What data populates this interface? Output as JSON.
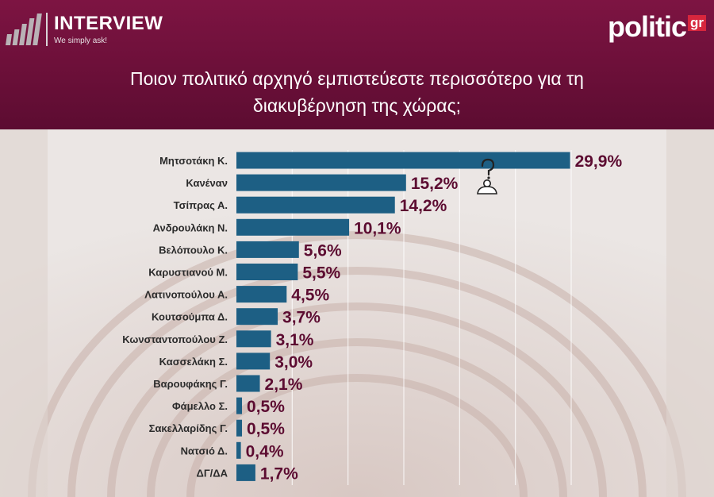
{
  "brand": {
    "left_name": "INTERVIEW",
    "left_tagline": "We simply ask!",
    "right_name": "politic",
    "right_suffix": "gr"
  },
  "title_line1": "Ποιον πολιτικό αρχηγό εμπιστεύεστε περισσότερο για τη",
  "title_line2": "διακυβέρνηση της χώρας;",
  "colors": {
    "header": "#6a0f38",
    "bar": "#1d5f84",
    "value_text": "#5c0c31",
    "accent": "#d7263d"
  },
  "chart_data": {
    "type": "bar",
    "orientation": "horizontal",
    "categories": [
      "Μητσοτάκη Κ.",
      "Κανέναν",
      "Τσίπρας Α.",
      "Ανδρουλάκη Ν.",
      "Βελόπουλο Κ.",
      "Καρυστιανού Μ.",
      "Λατινοπούλου Α.",
      "Κουτσούμπα Δ.",
      "Κωνσταντοπούλου Ζ.",
      "Κασσελάκη Σ.",
      "Βαρουφάκης Γ.",
      "Φάμελλο Σ.",
      "Σακελλαρίδης Γ.",
      "Νατσιό Δ.",
      "ΔΓ/ΔΑ"
    ],
    "values": [
      29.9,
      15.2,
      14.2,
      10.1,
      5.6,
      5.5,
      4.5,
      3.7,
      3.1,
      3.0,
      2.1,
      0.5,
      0.5,
      0.4,
      1.7
    ],
    "value_labels": [
      "29,9%",
      "15,2%",
      "14,2%",
      "10,1%",
      "5,6%",
      "5,5%",
      "4,5%",
      "3,7%",
      "3,1%",
      "3,0%",
      "2,1%",
      "0,5%",
      "0,5%",
      "0,4%",
      "1,7%"
    ],
    "xlim": [
      0,
      30
    ],
    "grid": true,
    "legend": "none"
  }
}
